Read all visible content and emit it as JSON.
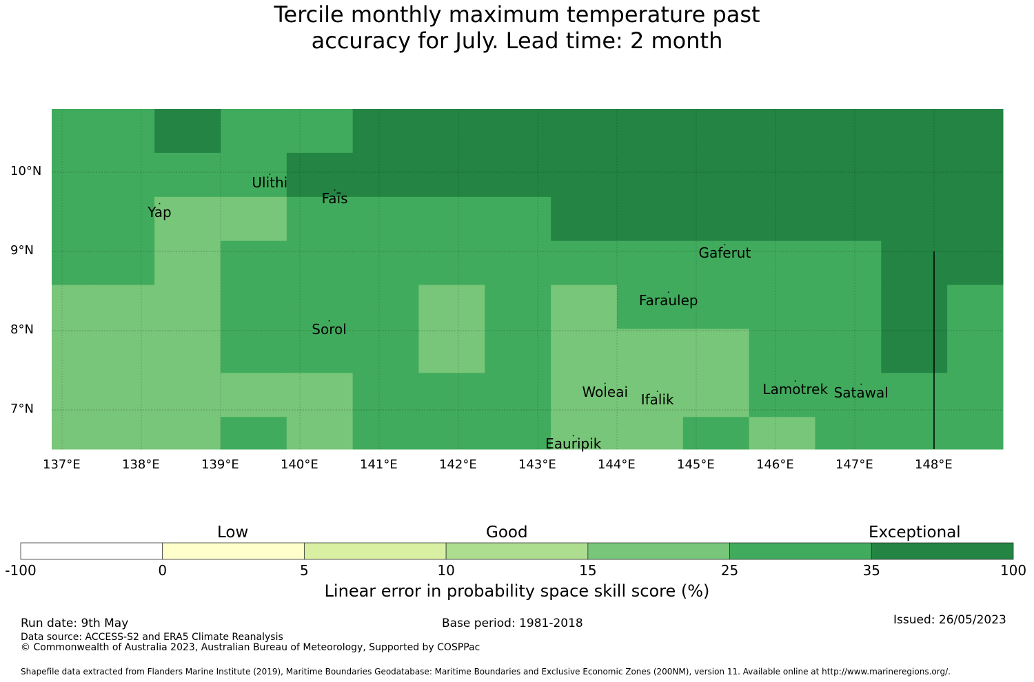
{
  "title": {
    "line1": "Tercile monthly maximum temperature past",
    "line2": "accuracy for July. Lead time: 2 month"
  },
  "map": {
    "lon_range": [
      137,
      149
    ],
    "lat_range": [
      6.5,
      10.8
    ],
    "lon_ticks": [
      {
        "value": 137,
        "label": "137°E"
      },
      {
        "value": 138,
        "label": "138°E"
      },
      {
        "value": 139,
        "label": "139°E"
      },
      {
        "value": 140,
        "label": "140°E"
      },
      {
        "value": 141,
        "label": "141°E"
      },
      {
        "value": 142,
        "label": "142°E"
      },
      {
        "value": 143,
        "label": "143°E"
      },
      {
        "value": 144,
        "label": "144°E"
      },
      {
        "value": 145,
        "label": "145°E"
      },
      {
        "value": 146,
        "label": "146°E"
      },
      {
        "value": 147,
        "label": "147°E"
      },
      {
        "value": 148,
        "label": "148°E"
      }
    ],
    "lat_ticks": [
      {
        "value": 10,
        "label": "10°N"
      },
      {
        "value": 9,
        "label": "9°N"
      },
      {
        "value": 8,
        "label": "8°N"
      },
      {
        "value": 7,
        "label": "7°N"
      }
    ],
    "grid_lon_step": 0.8333,
    "grid_lat_step": 0.5556,
    "grid_lon_start": 136.5,
    "grid_lat_start": 10.8,
    "grid_classes": [
      [
        5,
        5,
        6,
        5,
        5,
        6,
        6,
        6,
        6,
        6,
        6,
        6,
        6,
        6,
        6
      ],
      [
        5,
        5,
        5,
        5,
        6,
        6,
        6,
        6,
        6,
        6,
        6,
        6,
        6,
        6,
        6
      ],
      [
        5,
        5,
        4,
        4,
        5,
        5,
        5,
        5,
        6,
        6,
        6,
        6,
        6,
        6,
        6
      ],
      [
        5,
        5,
        4,
        5,
        5,
        5,
        5,
        5,
        5,
        5,
        5,
        5,
        5,
        6,
        6
      ],
      [
        4,
        4,
        4,
        5,
        5,
        5,
        4,
        5,
        4,
        5,
        5,
        5,
        5,
        6,
        5
      ],
      [
        4,
        4,
        4,
        5,
        5,
        5,
        4,
        5,
        4,
        4,
        4,
        5,
        5,
        6,
        5
      ],
      [
        4,
        4,
        4,
        4,
        4,
        5,
        5,
        5,
        4,
        4,
        4,
        5,
        5,
        5,
        5
      ],
      [
        4,
        4,
        4,
        5,
        4,
        5,
        5,
        5,
        4,
        4,
        5,
        4,
        5,
        5,
        5
      ],
      [
        4,
        5,
        5,
        4,
        4,
        5,
        5,
        5,
        4,
        3,
        4,
        5,
        5,
        5,
        5
      ]
    ],
    "grid_bottom_partial": [
      3,
      4,
      5,
      4,
      4,
      5,
      4,
      4,
      4,
      4,
      4,
      5,
      5,
      4,
      5
    ],
    "islands": [
      {
        "name": "Ulithi",
        "lon": 139.62,
        "lat": 9.87
      },
      {
        "name": "Faīs",
        "lon": 140.44,
        "lat": 9.67
      },
      {
        "name": "Yap",
        "lon": 138.23,
        "lat": 9.5
      },
      {
        "name": "Gaferut",
        "lon": 145.36,
        "lat": 8.98
      },
      {
        "name": "Faraulep",
        "lon": 144.65,
        "lat": 8.38
      },
      {
        "name": "Sorol",
        "lon": 140.37,
        "lat": 8.02
      },
      {
        "name": "Woleai",
        "lon": 143.85,
        "lat": 7.23
      },
      {
        "name": "Ifalik",
        "lon": 144.51,
        "lat": 7.13
      },
      {
        "name": "Lamotrek",
        "lon": 146.25,
        "lat": 7.26
      },
      {
        "name": "Satawal",
        "lon": 147.08,
        "lat": 7.22
      },
      {
        "name": "Eauripik",
        "lon": 143.45,
        "lat": 6.57
      }
    ],
    "boundary_line": {
      "lon": 148.0,
      "lat_from": 6.5,
      "lat_to": 9.0
    }
  },
  "colorbar": {
    "categories": [
      "Low",
      "Good",
      "Exceptional"
    ],
    "ticks": [
      "-100",
      "0",
      "5",
      "10",
      "15",
      "25",
      "35",
      "100"
    ],
    "colors": [
      "#ffffff",
      "#ffffcc",
      "#d9f0a3",
      "#addd8e",
      "#78c679",
      "#41ab5d",
      "#238443"
    ],
    "label": "Linear error in probability space skill score (%)"
  },
  "footer": {
    "run_date": "Run date: 9th May",
    "base_period": "Base period: 1981-2018",
    "issued": "Issued: 26/05/2023",
    "data_source": "Data source: ACCESS-S2 and ERA5 Climate Reanalysis",
    "copyright": "© Commonwealth of Australia 2023, Australian Bureau of Meteorology, Supported by COSPPac",
    "shapefile": "Shapefile data extracted from Flanders Marine Institute (2019), Maritime Boundaries Geodatabase: Maritime Boundaries and Exclusive Economic Zones (200NM), version 11. Available online at http://www.marineregions.org/."
  }
}
